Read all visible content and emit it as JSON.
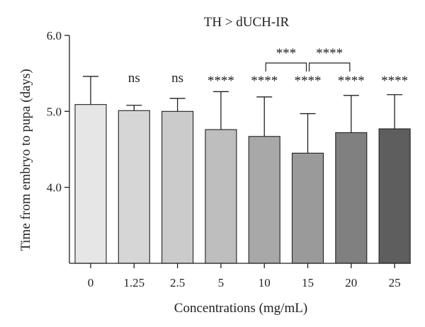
{
  "chart_data": {
    "type": "bar",
    "title": "TH > dUCH-IR",
    "xlabel": "Concentrations (mg/mL)",
    "ylabel": "Time from embryo to pupa (days)",
    "categories": [
      "0",
      "1.25",
      "2.5",
      "5",
      "10",
      "15",
      "20",
      "25"
    ],
    "values": [
      5.09,
      5.01,
      5.0,
      4.76,
      4.67,
      4.45,
      4.72,
      4.77
    ],
    "error_upper": [
      5.46,
      5.08,
      5.17,
      5.26,
      5.19,
      4.97,
      5.21,
      5.22
    ],
    "bar_colors": [
      "#e6e6e6",
      "#d6d6d6",
      "#cbcbcb",
      "#bebebe",
      "#a8a8a8",
      "#9a9a9a",
      "#808080",
      "#5e5e5e"
    ],
    "ylim": [
      3.0,
      6.0
    ],
    "yticks": [
      {
        "value": 4.0,
        "label": "4.0"
      },
      {
        "value": 5.0,
        "label": "5.0"
      },
      {
        "value": 6.0,
        "label": "6.0"
      }
    ],
    "grid": false,
    "annotations": [
      "",
      "ns",
      "ns",
      "****",
      "****",
      "****",
      "****",
      "****"
    ],
    "brackets": [
      {
        "from": 4,
        "to": 5,
        "label": "***"
      },
      {
        "from": 5,
        "to": 6,
        "label": "****"
      }
    ]
  }
}
